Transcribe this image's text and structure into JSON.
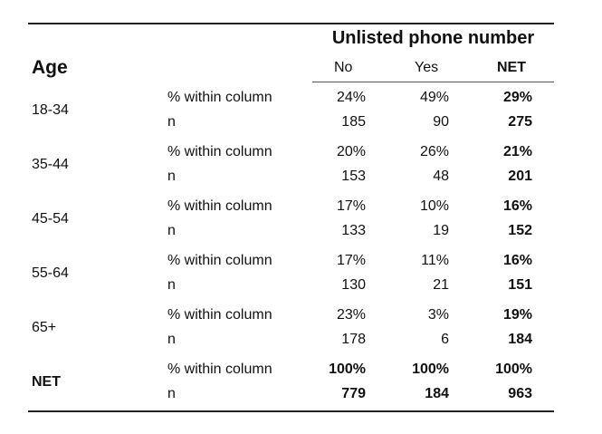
{
  "table": {
    "spanner_title": "Unlisted phone number",
    "row_header": "Age",
    "columns": [
      "No",
      "Yes",
      "NET"
    ],
    "stat_labels": {
      "pct": "% within column",
      "n": "n"
    },
    "groups": [
      {
        "label": "18-34",
        "pct": [
          "24%",
          "49%",
          "29%"
        ],
        "n": [
          "185",
          "90",
          "275"
        ],
        "bold": false
      },
      {
        "label": "35-44",
        "pct": [
          "20%",
          "26%",
          "21%"
        ],
        "n": [
          "153",
          "48",
          "201"
        ],
        "bold": false
      },
      {
        "label": "45-54",
        "pct": [
          "17%",
          "10%",
          "16%"
        ],
        "n": [
          "133",
          "19",
          "152"
        ],
        "bold": false
      },
      {
        "label": "55-64",
        "pct": [
          "17%",
          "11%",
          "16%"
        ],
        "n": [
          "130",
          "21",
          "151"
        ],
        "bold": false
      },
      {
        "label": "65+",
        "pct": [
          "23%",
          "3%",
          "19%"
        ],
        "n": [
          "178",
          "6",
          "184"
        ],
        "bold": false
      },
      {
        "label": "NET",
        "pct": [
          "100%",
          "100%",
          "100%"
        ],
        "n": [
          "779",
          "184",
          "963"
        ],
        "bold": true
      }
    ]
  }
}
